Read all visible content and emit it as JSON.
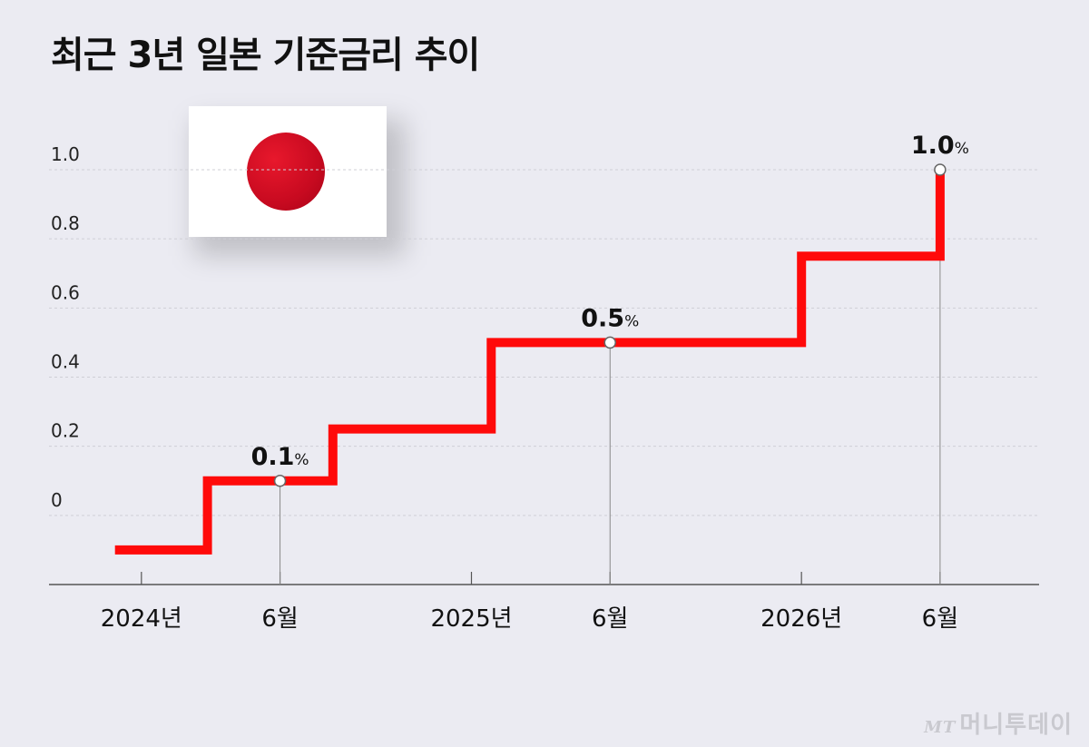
{
  "title": "최근 3년 일본 기준금리 추이",
  "logo": {
    "mark": "MT",
    "text": "머니투데이"
  },
  "colors": {
    "line": "#ff0a0a",
    "background": "#ebebf2",
    "grid": "#cfcfd6",
    "axis": "#555555"
  },
  "chart_data": {
    "type": "line",
    "step": true,
    "title": "최근 3년 일본 기준금리 추이",
    "yticks": [
      "1.0",
      "0.8",
      "0.6",
      "0.4",
      "0.2",
      "0"
    ],
    "ytick_values": [
      1.0,
      0.8,
      0.6,
      0.4,
      0.2,
      0
    ],
    "ylim": [
      -0.2,
      1.0
    ],
    "grid": true,
    "xlabels": [
      {
        "label": "2024년",
        "x": 2024.0
      },
      {
        "label": "6월",
        "x": 2024.42
      },
      {
        "label": "2025년",
        "x": 2025.0
      },
      {
        "label": "6월",
        "x": 2025.42
      },
      {
        "label": "2026년",
        "x": 2026.0
      },
      {
        "label": "6월",
        "x": 2026.42
      }
    ],
    "xlim": [
      2023.72,
      2026.72
    ],
    "series": [
      {
        "x": [
          2023.92,
          2024.2,
          2024.2,
          2024.58,
          2024.58,
          2025.06,
          2025.06,
          2025.56,
          2025.56,
          2026.0,
          2026.0,
          2026.42,
          2026.42
        ],
        "y": [
          -0.1,
          -0.1,
          0.1,
          0.1,
          0.25,
          0.25,
          0.5,
          0.5,
          0.5,
          0.5,
          0.75,
          0.75,
          1.0
        ]
      }
    ],
    "annotations": [
      {
        "x": 2024.42,
        "y": 0.1,
        "value": "0.1",
        "unit": "%"
      },
      {
        "x": 2025.42,
        "y": 0.5,
        "value": "0.5",
        "unit": "%"
      },
      {
        "x": 2026.42,
        "y": 1.0,
        "value": "1.0",
        "unit": "%"
      }
    ]
  }
}
